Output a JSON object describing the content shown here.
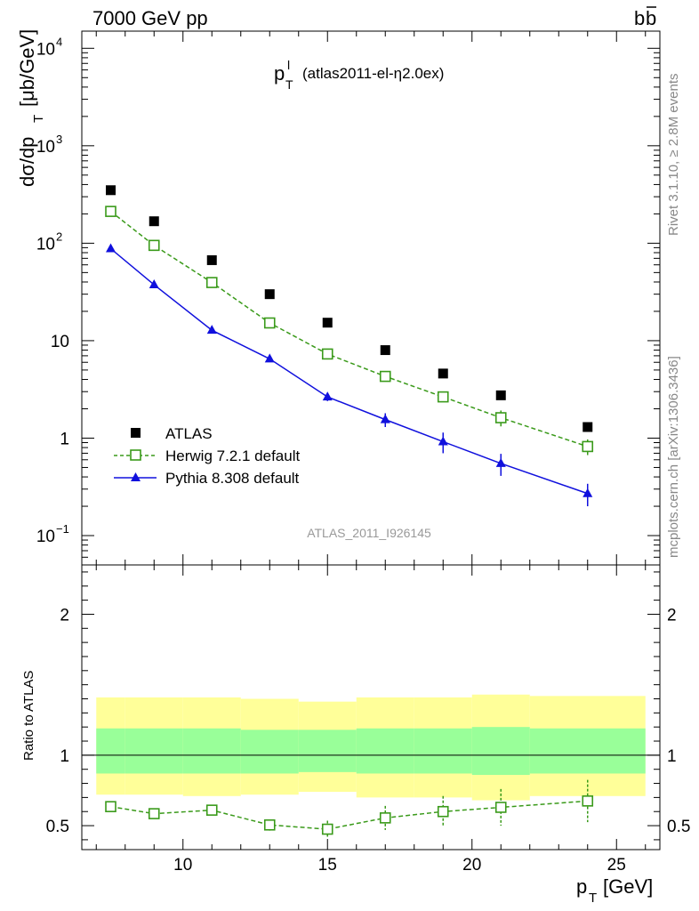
{
  "header": {
    "left": "7000 GeV pp",
    "right_main": "b",
    "right_bar": "b"
  },
  "side_labels": {
    "rivet": "Rivet 3.1.10, ≥ 2.8M events",
    "mcplots": "mcplots.cern.ch [arXiv:1306.3436]"
  },
  "plot_title": {
    "main": "p",
    "sup": "l",
    "sub": "T",
    "rest": "(atlas2011-el-η2.0ex)"
  },
  "watermark": "ATLAS_2011_I926145",
  "axes": {
    "ylabel_main": "dσ/dp",
    "ylabel_sub": "T",
    "ylabel_unit": "[μb/GeV]",
    "ratio_ylabel": "Ratio to ATLAS",
    "xlabel_main": "p",
    "xlabel_sub": "T",
    "xlabel_unit": "[GeV]"
  },
  "legend": [
    {
      "label": "ATLAS",
      "style": "data"
    },
    {
      "label": "Herwig 7.2.1 default",
      "style": "herwig"
    },
    {
      "label": "Pythia 8.308 default",
      "style": "pythia"
    }
  ],
  "colors": {
    "data": "#000000",
    "herwig": "#3a9a1a",
    "pythia": "#1010dd",
    "band_outer": "#ffff99",
    "band_inner": "#99ff99"
  },
  "chart_data": {
    "type": "scatter",
    "x_range": [
      6.5,
      26.5
    ],
    "main": {
      "y_scale": "log",
      "y_range": [
        0.05,
        15000
      ],
      "y_ticks": [
        {
          "v": 0.1,
          "label": "10",
          "exp": "−1"
        },
        {
          "v": 1,
          "label": "1",
          "exp": ""
        },
        {
          "v": 10,
          "label": "10",
          "exp": ""
        },
        {
          "v": 100,
          "label": "10",
          "exp": "2"
        },
        {
          "v": 1000,
          "label": "10",
          "exp": "3"
        },
        {
          "v": 10000,
          "label": "10",
          "exp": "4"
        }
      ]
    },
    "ratio": {
      "y_range": [
        0.33,
        2.35
      ],
      "y_ticks": [
        0.5,
        1,
        2
      ]
    },
    "x_ticks": [
      10,
      15,
      20,
      25
    ],
    "x_edges": [
      7,
      8,
      10,
      12,
      14,
      16,
      18,
      20,
      22,
      26
    ],
    "x_centers": [
      7.5,
      9,
      11,
      13,
      15,
      17,
      19,
      21,
      24
    ],
    "series": [
      {
        "name": "ATLAS",
        "key": "data",
        "values": [
          350,
          168,
          67,
          30,
          15.3,
          8.0,
          4.6,
          2.75,
          1.3
        ]
      },
      {
        "name": "Herwig 7.2.1 default",
        "key": "herwig",
        "values": [
          212,
          95,
          39.5,
          15.2,
          7.3,
          4.3,
          2.65,
          1.62,
          0.82
        ],
        "err": [
          0,
          0,
          0,
          0,
          0,
          0,
          0.3,
          0.3,
          0.15
        ]
      },
      {
        "name": "Pythia 8.308 default",
        "key": "pythia",
        "values": [
          88,
          37.5,
          12.8,
          6.5,
          2.65,
          1.55,
          0.92,
          0.55,
          0.27
        ],
        "err": [
          0,
          0,
          0,
          0,
          0.25,
          0.25,
          0.22,
          0.14,
          0.07
        ]
      }
    ],
    "herwig_ratio": {
      "values": [
        0.635,
        0.585,
        0.61,
        0.505,
        0.475,
        0.555,
        0.6,
        0.63,
        0.675
      ],
      "err": [
        0.015,
        0.015,
        0.025,
        0.04,
        0.06,
        0.085,
        0.11,
        0.13,
        0.15
      ]
    },
    "band_inner": [
      [
        0.87,
        1.19
      ],
      [
        0.87,
        1.19
      ],
      [
        0.87,
        1.19
      ],
      [
        0.87,
        1.18
      ],
      [
        0.88,
        1.18
      ],
      [
        0.87,
        1.19
      ],
      [
        0.87,
        1.19
      ],
      [
        0.86,
        1.2
      ],
      [
        0.87,
        1.19
      ]
    ],
    "band_outer": [
      [
        0.72,
        1.41
      ],
      [
        0.72,
        1.41
      ],
      [
        0.71,
        1.41
      ],
      [
        0.72,
        1.4
      ],
      [
        0.74,
        1.38
      ],
      [
        0.7,
        1.41
      ],
      [
        0.7,
        1.41
      ],
      [
        0.68,
        1.43
      ],
      [
        0.71,
        1.42
      ]
    ]
  }
}
